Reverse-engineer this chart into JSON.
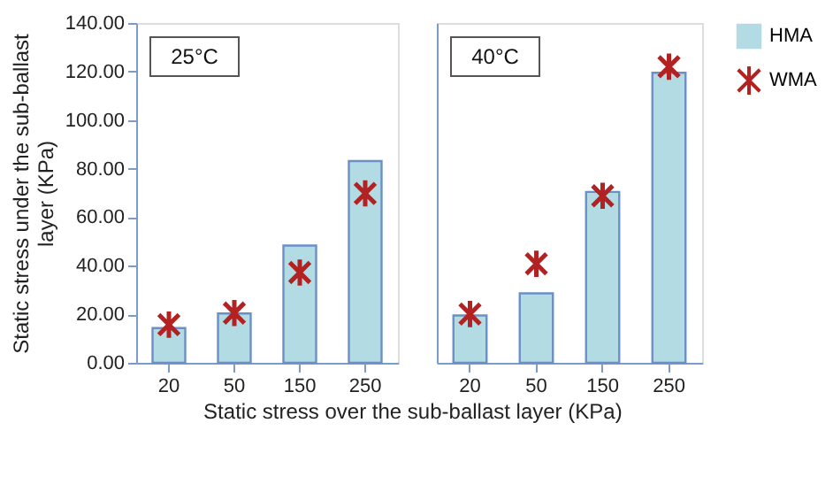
{
  "chart_data": [
    {
      "type": "bar",
      "title": "25°C",
      "ylabel": "Static stress under the sub-ballast layer (KPa)",
      "xlabel": "Static stress over the sub-ballast layer (KPa)",
      "categories": [
        "20",
        "50",
        "150",
        "250"
      ],
      "series": [
        {
          "name": "HMA",
          "color": "#b3dbe3",
          "values": [
            14.3,
            20.3,
            48.3,
            83.1
          ]
        },
        {
          "name": "WMA",
          "type": "scatter",
          "color": "#b22222",
          "marker": "cross",
          "values": [
            15.7,
            20.5,
            37.2,
            69.8
          ]
        }
      ],
      "ylim": [
        0,
        140
      ],
      "yticks": [
        {
          "value": 0,
          "label": "0.00"
        },
        {
          "value": 20,
          "label": "20.00"
        },
        {
          "value": 40,
          "label": "40.00"
        },
        {
          "value": 60,
          "label": "60.00"
        },
        {
          "value": 80,
          "label": "80.00"
        },
        {
          "value": 100,
          "label": "100.00"
        },
        {
          "value": 120,
          "label": "120.00"
        },
        {
          "value": 140,
          "label": "140.00"
        }
      ],
      "grid": false,
      "legend": "right"
    },
    {
      "type": "bar",
      "title": "40°C",
      "categories": [
        "20",
        "50",
        "150",
        "250"
      ],
      "series": [
        {
          "name": "HMA",
          "color": "#b3dbe3",
          "values": [
            19.5,
            28.6,
            70.4,
            119.5
          ]
        },
        {
          "name": "WMA",
          "type": "scatter",
          "color": "#b22222",
          "marker": "cross",
          "values": [
            20.1,
            40.8,
            68.8,
            122
          ]
        }
      ],
      "ylim": [
        0,
        140
      ],
      "tick_labels": "x",
      "grid": false
    }
  ]
}
